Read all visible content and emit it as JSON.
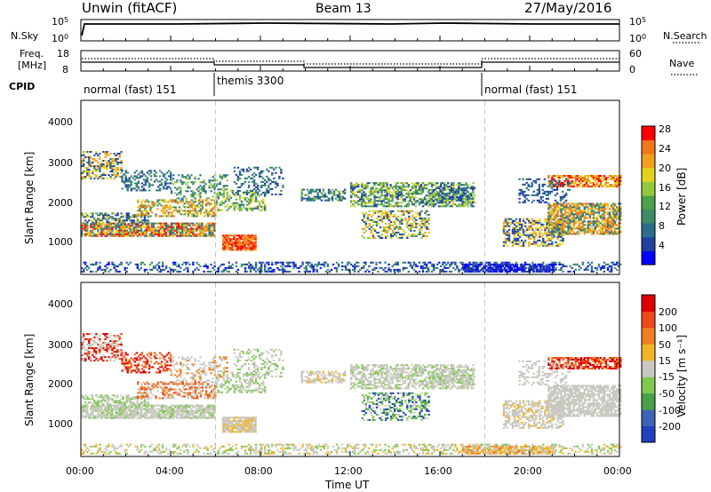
{
  "header": {
    "title": "Unwin (fitACF)",
    "beam": "Beam 13",
    "date": "27/May/2016"
  },
  "nsky_panel": {
    "label": "N.Sky",
    "right_label": "N.Search",
    "left_ticks": [
      "10^5",
      "10^0"
    ],
    "right_ticks": [
      "10^5",
      "10^0"
    ]
  },
  "freq_panel": {
    "label_line1": "Freq.",
    "label_line2": "[MHz]",
    "right_label": "Nave",
    "left_ticks": [
      "18",
      "8"
    ],
    "right_ticks": [
      "60",
      "0"
    ]
  },
  "cpid": {
    "label": "CPID",
    "segments": [
      {
        "name": "normal (fast) 151",
        "start_h": 0,
        "end_h": 6
      },
      {
        "name": "themis 3300",
        "start_h": 6,
        "end_h": 18
      },
      {
        "name": "normal (fast) 151",
        "start_h": 18,
        "end_h": 24
      }
    ]
  },
  "chart_data": [
    {
      "type": "heatmap",
      "name": "power",
      "ylabel": "Slant Range [km]",
      "yticks": [
        "4000",
        "3000",
        "2000",
        "1000"
      ],
      "ylim": [
        200,
        4600
      ],
      "colorbar": {
        "label": "Power [dB]",
        "ticks": [
          "28",
          "24",
          "20",
          "16",
          "12",
          "8",
          "4"
        ],
        "colors": [
          "#0000ff",
          "#2040a0",
          "#2a6e8e",
          "#3c8c64",
          "#4aa24a",
          "#94c83c",
          "#e2d21e",
          "#f0a020",
          "#f07818",
          "#ff0000"
        ]
      }
    },
    {
      "type": "heatmap",
      "name": "velocity",
      "ylabel": "Slant Range [km]",
      "yticks": [
        "4000",
        "3000",
        "2000",
        "1000"
      ],
      "ylim": [
        200,
        4600
      ],
      "colorbar": {
        "label": "Velocity [m s⁻¹]",
        "ticks": [
          "200",
          "100",
          "50",
          "15",
          "-15",
          "-50",
          "-100",
          "-200"
        ],
        "colors": [
          "#2040c0",
          "#3c64b4",
          "#48a048",
          "#80c850",
          "#c8c8c0",
          "#f0b428",
          "#f08020",
          "#f04818",
          "#e00000"
        ]
      }
    }
  ],
  "time_axis": {
    "xlabel": "Time UT",
    "ticks": [
      "00:00",
      "04:00",
      "08:00",
      "12:00",
      "16:00",
      "20:00",
      "00:00"
    ]
  },
  "colors": {
    "background": "#ffffff",
    "axes": "#000000",
    "grid": "#c8c8c8"
  }
}
